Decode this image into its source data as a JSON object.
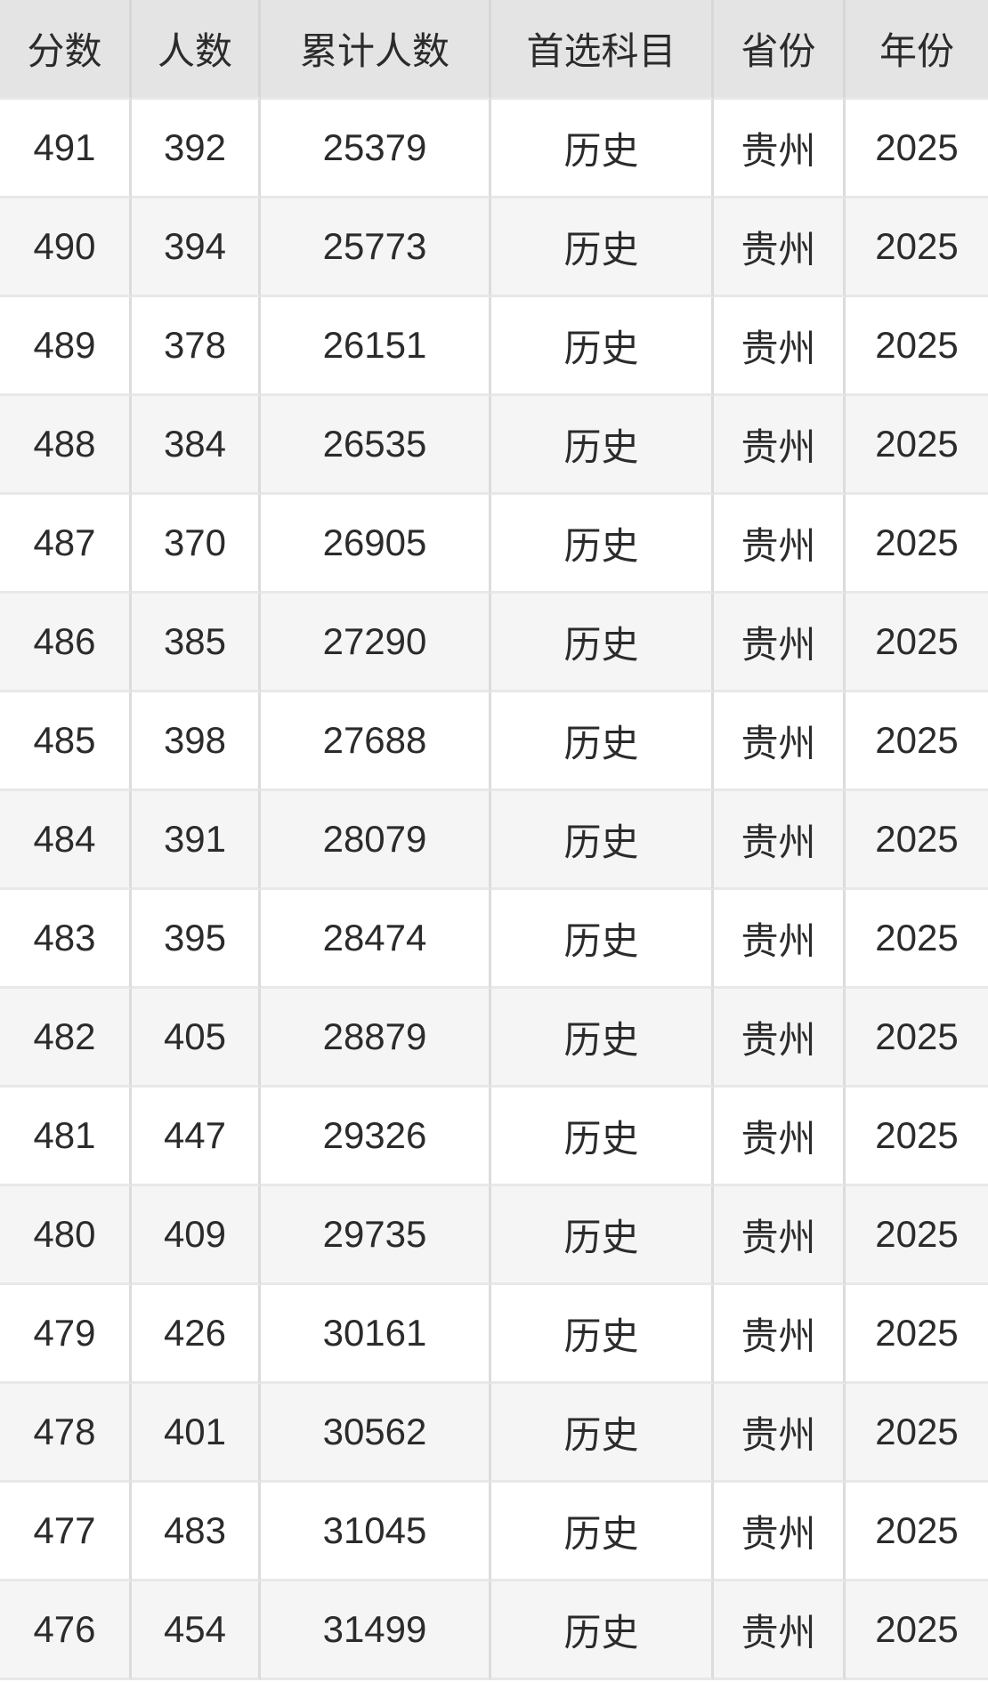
{
  "table": {
    "headers": [
      "分数",
      "人数",
      "累计人数",
      "首选科目",
      "省份",
      "年份"
    ],
    "rows": [
      [
        "491",
        "392",
        "25379",
        "历史",
        "贵州",
        "2025"
      ],
      [
        "490",
        "394",
        "25773",
        "历史",
        "贵州",
        "2025"
      ],
      [
        "489",
        "378",
        "26151",
        "历史",
        "贵州",
        "2025"
      ],
      [
        "488",
        "384",
        "26535",
        "历史",
        "贵州",
        "2025"
      ],
      [
        "487",
        "370",
        "26905",
        "历史",
        "贵州",
        "2025"
      ],
      [
        "486",
        "385",
        "27290",
        "历史",
        "贵州",
        "2025"
      ],
      [
        "485",
        "398",
        "27688",
        "历史",
        "贵州",
        "2025"
      ],
      [
        "484",
        "391",
        "28079",
        "历史",
        "贵州",
        "2025"
      ],
      [
        "483",
        "395",
        "28474",
        "历史",
        "贵州",
        "2025"
      ],
      [
        "482",
        "405",
        "28879",
        "历史",
        "贵州",
        "2025"
      ],
      [
        "481",
        "447",
        "29326",
        "历史",
        "贵州",
        "2025"
      ],
      [
        "480",
        "409",
        "29735",
        "历史",
        "贵州",
        "2025"
      ],
      [
        "479",
        "426",
        "30161",
        "历史",
        "贵州",
        "2025"
      ],
      [
        "478",
        "401",
        "30562",
        "历史",
        "贵州",
        "2025"
      ],
      [
        "477",
        "483",
        "31045",
        "历史",
        "贵州",
        "2025"
      ],
      [
        "476",
        "454",
        "31499",
        "历史",
        "贵州",
        "2025"
      ]
    ]
  },
  "colors": {
    "header_bg": "#e4e4e4",
    "row_bg": "#ffffff",
    "row_alt_bg": "#f5f5f5",
    "border_vertical": "#dcdcdc",
    "border_horizontal": "#e8e8e8",
    "text": "#2b2b2b"
  }
}
